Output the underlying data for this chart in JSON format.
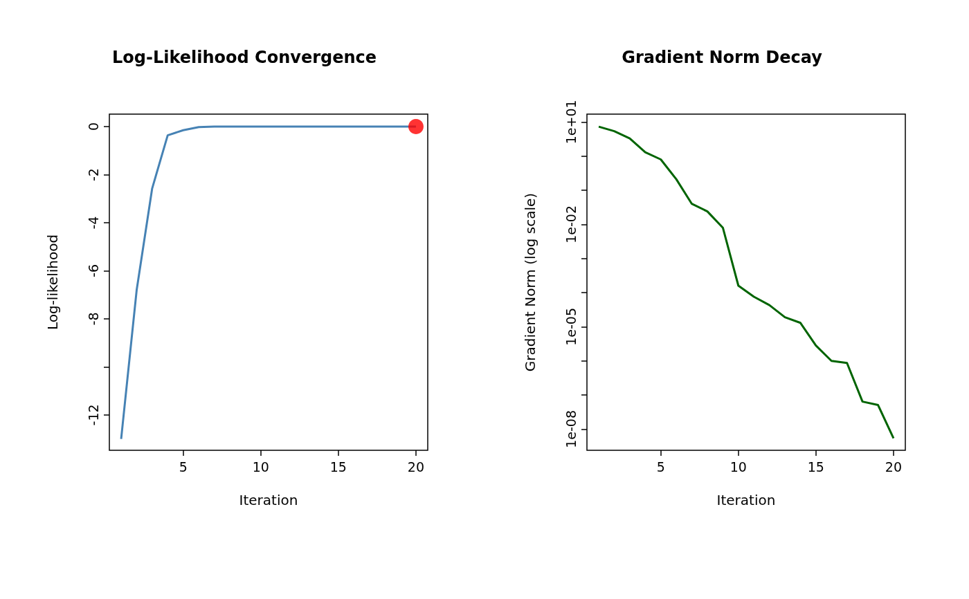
{
  "chart_data": [
    {
      "type": "line",
      "title": "Log-Likelihood Convergence",
      "xlabel": "Iteration",
      "ylabel": "Log-likelihood",
      "x": [
        1,
        2,
        3,
        4,
        5,
        6,
        7,
        8,
        9,
        10,
        11,
        12,
        13,
        14,
        15,
        16,
        17,
        18,
        19,
        20
      ],
      "series": [
        {
          "color": "#4682b4",
          "marker": "none",
          "values": [
            -13,
            -6.8,
            -2.57,
            -0.36,
            -0.15,
            -0.02,
            0,
            0,
            0,
            0,
            0,
            0,
            0,
            0,
            0,
            0,
            0,
            0,
            0,
            0
          ]
        },
        {
          "type": "scatter",
          "color": "#ff0000",
          "marker": "circle",
          "x": [
            20
          ],
          "values": [
            0
          ]
        }
      ],
      "xlim": [
        0.24,
        20.76
      ],
      "xticks": [
        5,
        10,
        15,
        20
      ],
      "ylim": [
        -13.47,
        0.52
      ],
      "yticks": [
        0,
        -2,
        -4,
        -6,
        -8,
        {
          "value": -10,
          "label": null
        },
        -12
      ],
      "grid": false
    },
    {
      "type": "line",
      "title": "Gradient Norm Decay",
      "xlabel": "Iteration",
      "ylabel": "Gradient Norm (log scale)",
      "x": [
        1,
        2,
        3,
        4,
        5,
        6,
        7,
        8,
        9,
        10,
        11,
        12,
        13,
        14,
        15,
        16,
        17,
        18,
        19,
        20
      ],
      "series": [
        {
          "color": "#006400",
          "values": [
            7.3,
            5.4,
            3.3,
            1.3,
            0.8,
            0.21,
            0.04,
            0.024,
            0.008,
            0.00016,
            7.6e-05,
            4.3e-05,
            1.9e-05,
            1.3e-05,
            2.8e-06,
            1e-06,
            8.7e-07,
            6.4e-08,
            5.1e-08,
            5.4e-09
          ]
        }
      ],
      "log": "y",
      "xlim": [
        0.24,
        20.76
      ],
      "xticks": [
        5,
        10,
        15,
        20
      ],
      "ylim": [
        2.4e-09,
        17
      ],
      "yticks": [
        {
          "value": 10,
          "label": "1e+01"
        },
        {
          "value": 1,
          "label": null
        },
        {
          "value": 0.1,
          "label": null
        },
        {
          "value": 0.01,
          "label": "1e-02"
        },
        {
          "value": 0.001,
          "label": null
        },
        {
          "value": 0.0001,
          "label": null
        },
        {
          "value": 1e-05,
          "label": "1e-05"
        },
        {
          "value": 1e-06,
          "label": null
        },
        {
          "value": 1e-07,
          "label": null
        },
        {
          "value": 1e-08,
          "label": "1e-08"
        }
      ],
      "grid": false,
      "marker": "none"
    }
  ]
}
